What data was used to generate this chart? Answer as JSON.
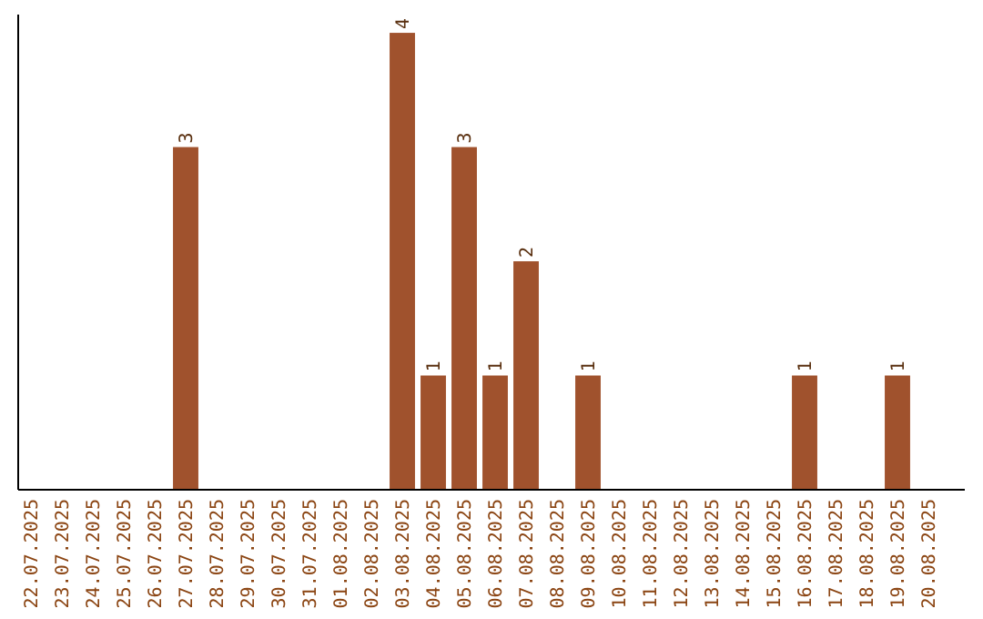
{
  "chart_data": {
    "type": "bar",
    "categories": [
      "22.07.2025",
      "23.07.2025",
      "24.07.2025",
      "25.07.2025",
      "26.07.2025",
      "27.07.2025",
      "28.07.2025",
      "29.07.2025",
      "30.07.2025",
      "31.07.2025",
      "01.08.2025",
      "02.08.2025",
      "03.08.2025",
      "04.08.2025",
      "05.08.2025",
      "06.08.2025",
      "07.08.2025",
      "08.08.2025",
      "09.08.2025",
      "10.08.2025",
      "11.08.2025",
      "12.08.2025",
      "13.08.2025",
      "14.08.2025",
      "15.08.2025",
      "16.08.2025",
      "17.08.2025",
      "18.08.2025",
      "19.08.2025",
      "20.08.2025"
    ],
    "values": [
      0,
      0,
      0,
      0,
      0,
      3,
      0,
      0,
      0,
      0,
      0,
      0,
      4,
      1,
      3,
      1,
      2,
      0,
      1,
      0,
      0,
      0,
      0,
      0,
      0,
      1,
      0,
      0,
      1,
      0
    ],
    "value_labels": [
      null,
      null,
      null,
      null,
      null,
      "3",
      null,
      null,
      null,
      null,
      null,
      null,
      "4",
      "1",
      "3",
      "1",
      "2",
      null,
      "1",
      null,
      null,
      null,
      null,
      null,
      null,
      "1",
      null,
      null,
      "1",
      null
    ],
    "color": "#a0522d"
  }
}
